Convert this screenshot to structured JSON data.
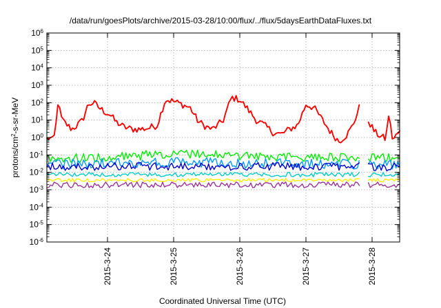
{
  "chart_data": {
    "type": "line",
    "title": "/data/run/goesPlots/archive/2015-03-28/10:00/flux/../flux/5daysEarthDataFluxes.txt",
    "xlabel": "Coordinated Universal Time (UTC)",
    "ylabel": {
      "pre": "protons/cm",
      "sup": "2",
      "post": "-s-sr-MeV"
    },
    "y_scale": "log",
    "ylim": [
      1e-06,
      1000000.0
    ],
    "y_ticks": [
      {
        "value": 1e-06,
        "base": "10",
        "exp": "-6"
      },
      {
        "value": 1e-05,
        "base": "10",
        "exp": "-5"
      },
      {
        "value": 0.0001,
        "base": "10",
        "exp": "-4"
      },
      {
        "value": 0.001,
        "base": "10",
        "exp": "-3"
      },
      {
        "value": 0.01,
        "base": "10",
        "exp": "-2"
      },
      {
        "value": 0.1,
        "base": "10",
        "exp": "-1"
      },
      {
        "value": 1,
        "base": "10",
        "exp": "0"
      },
      {
        "value": 10,
        "base": "10",
        "exp": "1"
      },
      {
        "value": 100,
        "base": "10",
        "exp": "2"
      },
      {
        "value": 1000,
        "base": "10",
        "exp": "3"
      },
      {
        "value": 10000,
        "base": "10",
        "exp": "4"
      },
      {
        "value": 100000,
        "base": "10",
        "exp": "5"
      },
      {
        "value": 1000000,
        "base": "10",
        "exp": "6"
      }
    ],
    "x_type": "date",
    "xlim": [
      "2015-03-23T02:00",
      "2015-03-28T10:00"
    ],
    "x_ticks": [
      "2015-3-24",
      "2015-3-25",
      "2015-3-26",
      "2015-3-27",
      "2015-3-28"
    ],
    "grid": true,
    "legend": "none",
    "data_gap": [
      "2015-03-27T19:30",
      "2015-03-27T22:30"
    ],
    "series": [
      {
        "color": "#ff0000",
        "envelope": false,
        "x": [
          "2015-03-23T02:00",
          "2015-03-23T03:00",
          "2015-03-23T04:00",
          "2015-03-23T05:00",
          "2015-03-23T06:00",
          "2015-03-23T07:30",
          "2015-03-23T09:00",
          "2015-03-23T11:00",
          "2015-03-23T13:00",
          "2015-03-23T15:00",
          "2015-03-23T17:00",
          "2015-03-23T19:00",
          "2015-03-23T21:00",
          "2015-03-23T23:00",
          "2015-03-24T01:00",
          "2015-03-24T03:00",
          "2015-03-24T06:00",
          "2015-03-24T09:00",
          "2015-03-24T12:00",
          "2015-03-24T15:00",
          "2015-03-24T18:00",
          "2015-03-24T21:00",
          "2015-03-25T00:00",
          "2015-03-25T03:00",
          "2015-03-25T06:00",
          "2015-03-25T09:00",
          "2015-03-25T12:00",
          "2015-03-25T14:00",
          "2015-03-25T16:00",
          "2015-03-25T18:00",
          "2015-03-25T21:00",
          "2015-03-26T00:00",
          "2015-03-26T03:00",
          "2015-03-26T06:00",
          "2015-03-26T09:00",
          "2015-03-26T12:00",
          "2015-03-26T15:00",
          "2015-03-26T18:00",
          "2015-03-26T21:00",
          "2015-03-27T00:00",
          "2015-03-27T03:00",
          "2015-03-27T06:00",
          "2015-03-27T09:00",
          "2015-03-27T12:00",
          "2015-03-27T15:00",
          "2015-03-27T17:00",
          "2015-03-27T19:30",
          "2015-03-27T22:30",
          "2015-03-28T01:00",
          "2015-03-28T03:00",
          "2015-03-28T05:00",
          "2015-03-28T06:00",
          "2015-03-28T07:30",
          "2015-03-28T09:00",
          "2015-03-28T10:00"
        ],
        "y": [
          0.8,
          1.0,
          0.7,
          1.5,
          100,
          10,
          6,
          3,
          5,
          10,
          80,
          100,
          50,
          30,
          20,
          8,
          4,
          3,
          3,
          3.5,
          5,
          150,
          120,
          80,
          50,
          8,
          4,
          3,
          5,
          10,
          200,
          150,
          40,
          10,
          5,
          2,
          1.5,
          3,
          5,
          80,
          50,
          10,
          2,
          0.6,
          1.5,
          5,
          60,
          10,
          2,
          1.2,
          0.8,
          20,
          0.7,
          1.5,
          2
        ],
        "noise": 0.2
      },
      {
        "color": "#00ee00",
        "envelope": true,
        "x": [
          "2015-03-23T02:00",
          "2015-03-24T00:00",
          "2015-03-24T12:00",
          "2015-03-25T00:00",
          "2015-03-25T12:00",
          "2015-03-26T00:00",
          "2015-03-27T00:00",
          "2015-03-27T19:30",
          "2015-03-27T22:30",
          "2015-03-28T10:00"
        ],
        "y_low": [
          0.035,
          0.04,
          0.05,
          0.07,
          0.06,
          0.05,
          0.04,
          0.04,
          0.04,
          0.04
        ],
        "y_high": [
          0.12,
          0.13,
          0.18,
          0.25,
          0.2,
          0.15,
          0.13,
          0.13,
          0.13,
          0.13
        ]
      },
      {
        "color": "#0099ff",
        "envelope": true,
        "x": [
          "2015-03-23T02:00",
          "2015-03-25T00:00",
          "2015-03-26T00:00",
          "2015-03-27T19:30",
          "2015-03-27T22:30",
          "2015-03-28T10:00"
        ],
        "y_low": [
          0.015,
          0.02,
          0.017,
          0.015,
          0.015,
          0.015
        ],
        "y_high": [
          0.06,
          0.08,
          0.07,
          0.06,
          0.06,
          0.06
        ]
      },
      {
        "color": "#0000cc",
        "envelope": true,
        "x": [
          "2015-03-23T02:00",
          "2015-03-25T00:00",
          "2015-03-27T19:30",
          "2015-03-27T22:30",
          "2015-03-28T10:00"
        ],
        "y_low": [
          0.012,
          0.013,
          0.012,
          0.012,
          0.012
        ],
        "y_high": [
          0.035,
          0.04,
          0.035,
          0.035,
          0.035
        ]
      },
      {
        "color": "#00cccc",
        "envelope": true,
        "x": [
          "2015-03-23T02:00",
          "2015-03-28T10:00"
        ],
        "y_low": [
          0.0055,
          0.0055
        ],
        "y_high": [
          0.01,
          0.01
        ]
      },
      {
        "color": "#ffee00",
        "envelope": true,
        "x": [
          "2015-03-23T02:00",
          "2015-03-28T10:00"
        ],
        "y_low": [
          0.0028,
          0.0028
        ],
        "y_high": [
          0.0045,
          0.0045
        ]
      },
      {
        "color": "#993399",
        "envelope": true,
        "x": [
          "2015-03-23T02:00",
          "2015-03-28T10:00"
        ],
        "y_low": [
          0.0013,
          0.0013
        ],
        "y_high": [
          0.0028,
          0.0028
        ]
      }
    ]
  }
}
